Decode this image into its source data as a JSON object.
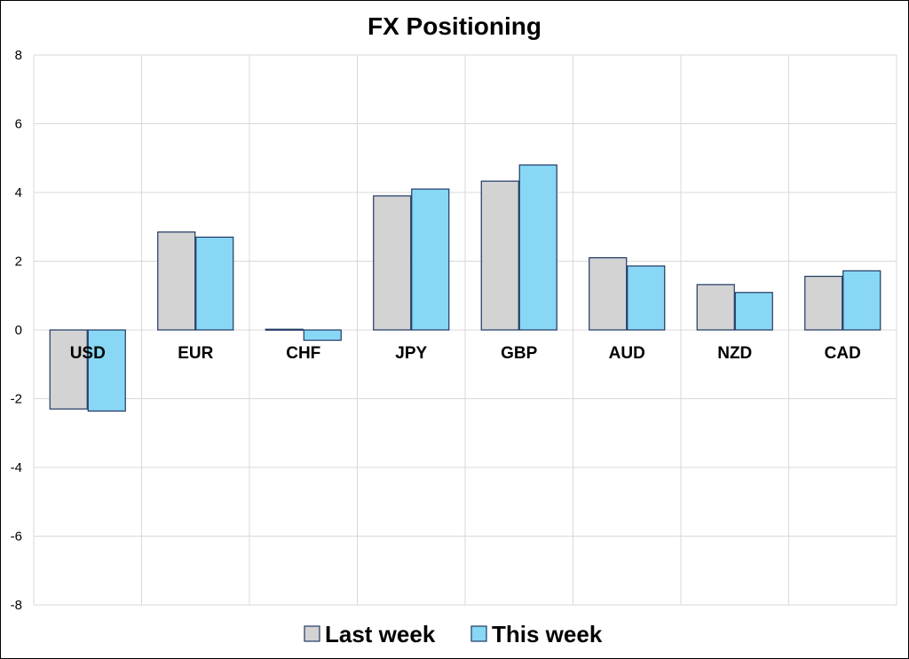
{
  "chart_data": {
    "type": "bar",
    "title": "FX Positioning",
    "categories": [
      "USD",
      "EUR",
      "CHF",
      "JPY",
      "GBP",
      "AUD",
      "NZD",
      "CAD"
    ],
    "series": [
      {
        "name": "Last week",
        "values": [
          -2.3,
          2.85,
          0.02,
          3.9,
          4.33,
          2.1,
          1.32,
          1.56
        ],
        "color": "#d3d3d3"
      },
      {
        "name": "This week",
        "values": [
          -2.36,
          2.7,
          -0.3,
          4.1,
          4.8,
          1.86,
          1.09,
          1.72
        ],
        "color": "#87d7f5"
      }
    ],
    "ylim": [
      -8,
      8
    ],
    "yticks": [
      "8",
      "6",
      "4",
      "2",
      "0",
      "-2",
      "-4",
      "-6",
      "-8"
    ],
    "ytick_values": [
      8,
      6,
      4,
      2,
      0,
      -2,
      -4,
      -6,
      -8
    ],
    "grid": true,
    "legend_position": "bottom",
    "bar_border_color": "#1f3864"
  }
}
